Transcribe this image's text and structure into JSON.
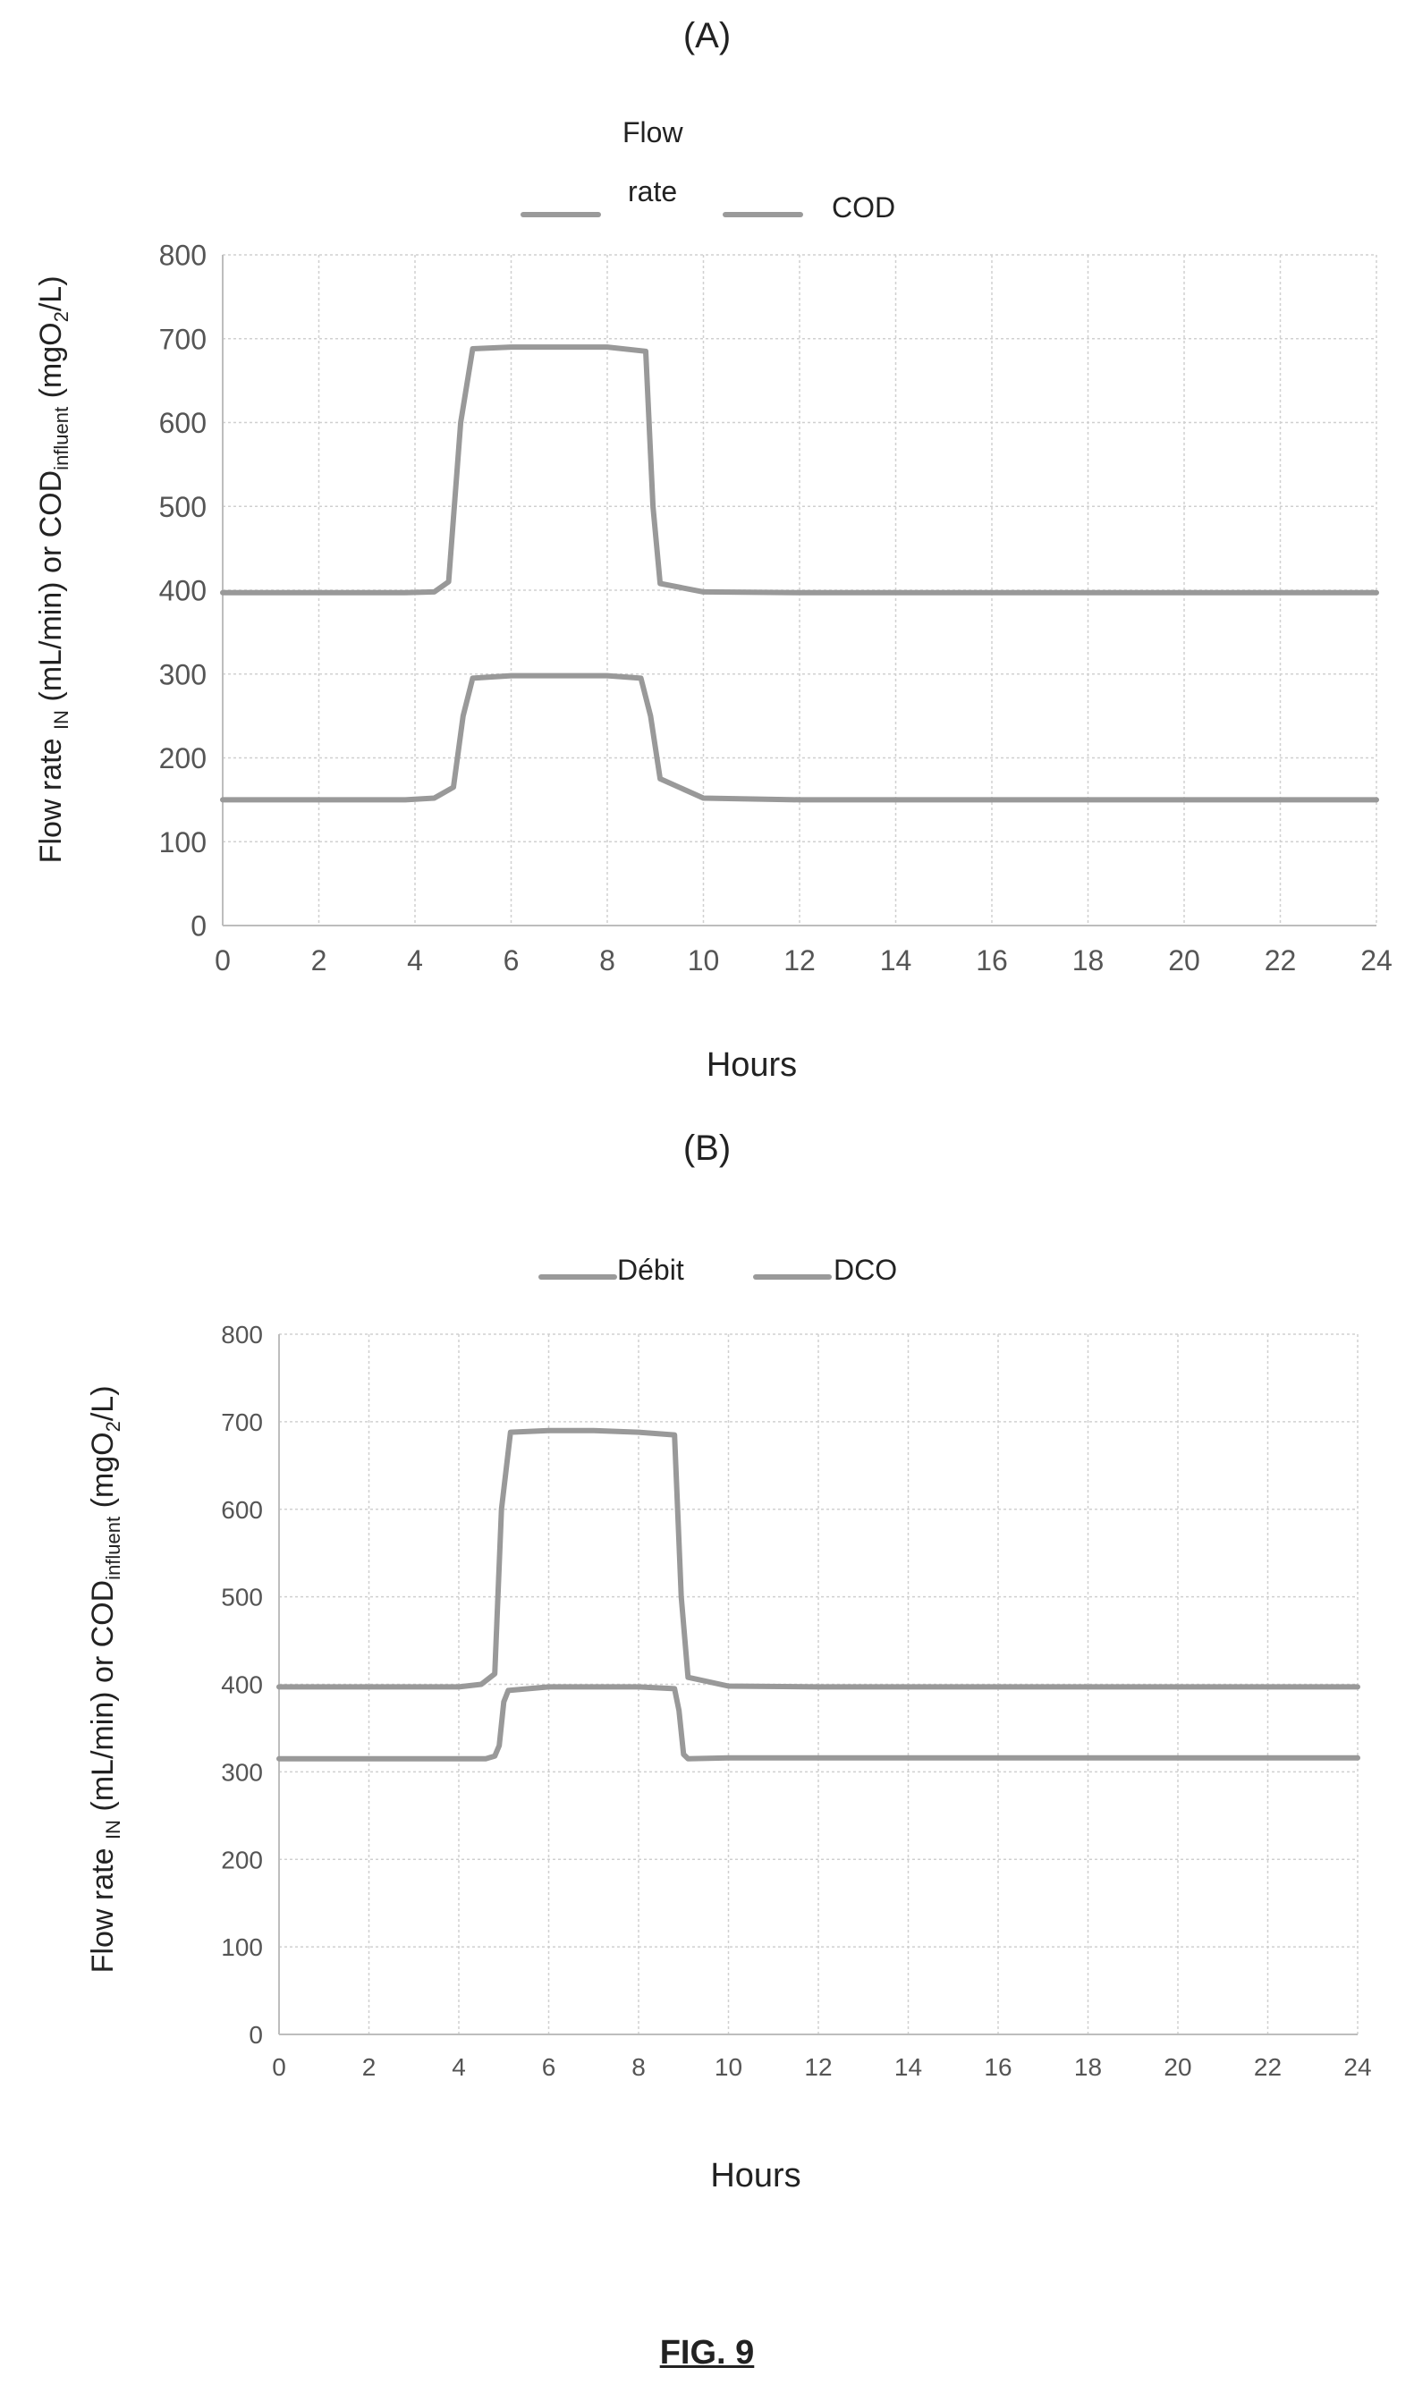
{
  "figure_label": "FIG. 9",
  "chart_data": [
    {
      "type": "line",
      "panel_label": "(A)",
      "title": "",
      "xlabel": "Hours",
      "ylabel_main": "Flow rate ",
      "ylabel_sub1": "IN",
      "ylabel_mid": " (mL/min) or COD",
      "ylabel_sub2": "influent",
      "ylabel_end": " (mgO",
      "ylabel_sub3": "2",
      "ylabel_tail": "/L)",
      "xlim": [
        0,
        24
      ],
      "ylim": [
        0,
        800
      ],
      "x_ticks": [
        0,
        2,
        4,
        6,
        8,
        10,
        12,
        14,
        16,
        18,
        20,
        22,
        24
      ],
      "y_ticks": [
        0,
        100,
        200,
        300,
        400,
        500,
        600,
        700,
        800
      ],
      "grid": true,
      "legend_position": "top-center",
      "legend_entries": [
        {
          "line1": "Flow",
          "line2": "rate"
        },
        {
          "line1": "COD",
          "line2": ""
        }
      ],
      "series": [
        {
          "name": "Flow rate",
          "x": [
            0,
            3.8,
            4.4,
            4.8,
            5.0,
            5.2,
            6,
            7,
            8,
            8.7,
            8.9,
            9.1,
            10,
            12,
            24
          ],
          "y": [
            150,
            150,
            152,
            165,
            250,
            295,
            298,
            298,
            298,
            295,
            250,
            175,
            152,
            150,
            150
          ]
        },
        {
          "name": "COD",
          "x": [
            0,
            3.8,
            4.4,
            4.7,
            4.95,
            5.2,
            6,
            7,
            8,
            8.8,
            8.95,
            9.1,
            10,
            12,
            24
          ],
          "y": [
            397,
            397,
            398,
            410,
            600,
            688,
            690,
            690,
            690,
            685,
            500,
            408,
            398,
            397,
            397
          ]
        }
      ],
      "color": "#999999"
    },
    {
      "type": "line",
      "panel_label": "(B)",
      "title": "",
      "xlabel": "Hours",
      "ylabel_main": "Flow rate ",
      "ylabel_sub1": "IN",
      "ylabel_mid": " (mL/min) or COD",
      "ylabel_sub2": "influent",
      "ylabel_end": " (mgO",
      "ylabel_sub3": "2",
      "ylabel_tail": "/L)",
      "xlim": [
        0,
        24
      ],
      "ylim": [
        0,
        800
      ],
      "x_ticks": [
        0,
        2,
        4,
        6,
        8,
        10,
        12,
        14,
        16,
        18,
        20,
        22,
        24
      ],
      "y_ticks": [
        0,
        100,
        200,
        300,
        400,
        500,
        600,
        700,
        800
      ],
      "grid": true,
      "legend_position": "top-center",
      "legend_entries": [
        {
          "line1": "Débit",
          "line2": ""
        },
        {
          "line1": "DCO",
          "line2": ""
        }
      ],
      "series": [
        {
          "name": "Débit",
          "x": [
            0,
            4.6,
            4.8,
            4.9,
            5.0,
            5.1,
            6,
            7,
            8,
            8.8,
            8.9,
            9.0,
            9.1,
            10,
            24
          ],
          "y": [
            315,
            315,
            318,
            330,
            380,
            393,
            397,
            397,
            397,
            395,
            370,
            320,
            315,
            316,
            316
          ]
        },
        {
          "name": "DCO",
          "x": [
            0,
            4.0,
            4.5,
            4.8,
            4.95,
            5.15,
            6,
            7,
            8,
            8.8,
            8.95,
            9.1,
            10,
            12,
            24
          ],
          "y": [
            397,
            397,
            400,
            412,
            600,
            688,
            690,
            690,
            688,
            685,
            500,
            408,
            398,
            397,
            397
          ]
        }
      ],
      "color": "#999999"
    }
  ]
}
